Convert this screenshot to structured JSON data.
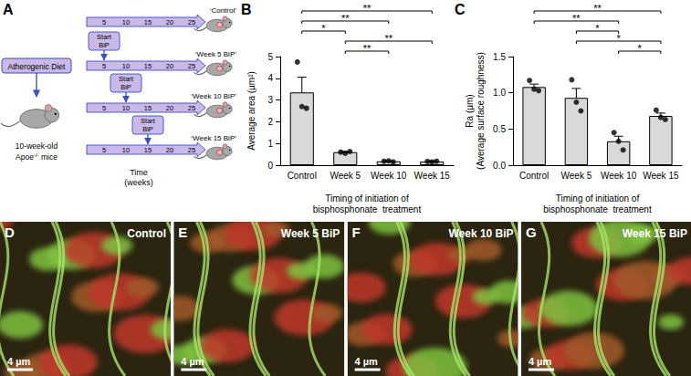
{
  "panel_letters": [
    "A",
    "B",
    "C",
    "D",
    "E",
    "F",
    "G"
  ],
  "diagram": {
    "diet": "Atherogenic Diet",
    "mouse_age": "10-week-old",
    "mouse_strain": "Apoe",
    "mouse_genotype": "-/-",
    "mouse_word": "mice",
    "start_label": [
      "Start",
      "BiP"
    ],
    "weeks": [
      5,
      10,
      15,
      20,
      25
    ],
    "time_label": [
      "Time",
      "(weeks)"
    ],
    "rows": [
      {
        "label": "‘Control’",
        "start_week": null
      },
      {
        "label": "‘Week 5 BiP’",
        "start_week": 5
      },
      {
        "label": "‘Week 10 BiP’",
        "start_week": 10
      },
      {
        "label": "‘Week 15 BiP’",
        "start_week": 15
      }
    ]
  },
  "chart_data": [
    {
      "type": "bar",
      "categories": [
        "Control",
        "Week 5",
        "Week 10",
        "Week 15"
      ],
      "values": [
        3.35,
        0.6,
        0.18,
        0.17
      ],
      "errors": [
        0.7,
        0.03,
        0.02,
        0.02
      ],
      "points": [
        [
          4.75,
          2.7,
          2.62
        ],
        [
          0.6,
          0.55,
          0.63
        ],
        [
          0.18,
          0.2,
          0.15
        ],
        [
          0.17,
          0.15,
          0.18
        ]
      ],
      "color": "#d9d9d9",
      "ylabel": "Average area (µm²)",
      "xlabel": [
        "Timing of initiation of",
        "bisphosphonate  treatment"
      ],
      "ylim": [
        0,
        5
      ],
      "yticks": [
        0,
        1,
        2,
        3,
        4,
        5
      ],
      "grid": false,
      "significance": [
        {
          "from": "Control",
          "to": "Week 15",
          "label": "**"
        },
        {
          "from": "Control",
          "to": "Week 10",
          "label": "**"
        },
        {
          "from": "Control",
          "to": "Week 5",
          "label": "*"
        },
        {
          "from": "Week 5",
          "to": "Week 15",
          "label": "**"
        },
        {
          "from": "Week 5",
          "to": "Week 10",
          "label": "**"
        }
      ]
    },
    {
      "type": "bar",
      "categories": [
        "Control",
        "Week 5",
        "Week 10",
        "Week 15"
      ],
      "values": [
        1.08,
        0.93,
        0.33,
        0.68
      ],
      "errors": [
        0.04,
        0.13,
        0.07,
        0.04
      ],
      "points": [
        [
          1.17,
          1.05,
          1.03
        ],
        [
          1.18,
          0.87,
          0.75
        ],
        [
          0.45,
          0.33,
          0.21
        ],
        [
          0.76,
          0.66,
          0.63
        ]
      ],
      "color": "#d9d9d9",
      "ylabel": [
        "Ra (µm)",
        "(Average surface roughness)"
      ],
      "xlabel": [
        "Timing of initiation of",
        "bisphosphonate  treatment"
      ],
      "ylim": [
        0,
        1.5
      ],
      "yticks": [
        {
          "value": 0,
          "label": "0.0"
        },
        {
          "value": 0.5,
          "label": "0.5"
        },
        {
          "value": 1,
          "label": "1.0"
        },
        {
          "value": 1.5,
          "label": "1.5"
        }
      ],
      "grid": false,
      "significance": [
        {
          "from": "Control",
          "to": "Week 15",
          "label": "**"
        },
        {
          "from": "Control",
          "to": "Week 10",
          "label": "**"
        },
        {
          "from": "Week 5",
          "to": "Week 10",
          "label": "*"
        },
        {
          "from": "Week 5",
          "to": "Week 15",
          "label": "*"
        },
        {
          "from": "Week 10",
          "to": "Week 15",
          "label": "*"
        }
      ]
    }
  ],
  "images": [
    {
      "label": "Control",
      "scale": "4 µm"
    },
    {
      "label": "Week 5 BiP",
      "scale": "4 µm"
    },
    {
      "label": "Week 10 BiP",
      "scale": "4 µm"
    },
    {
      "label": "Week 15 BiP",
      "scale": "4 µm"
    }
  ]
}
